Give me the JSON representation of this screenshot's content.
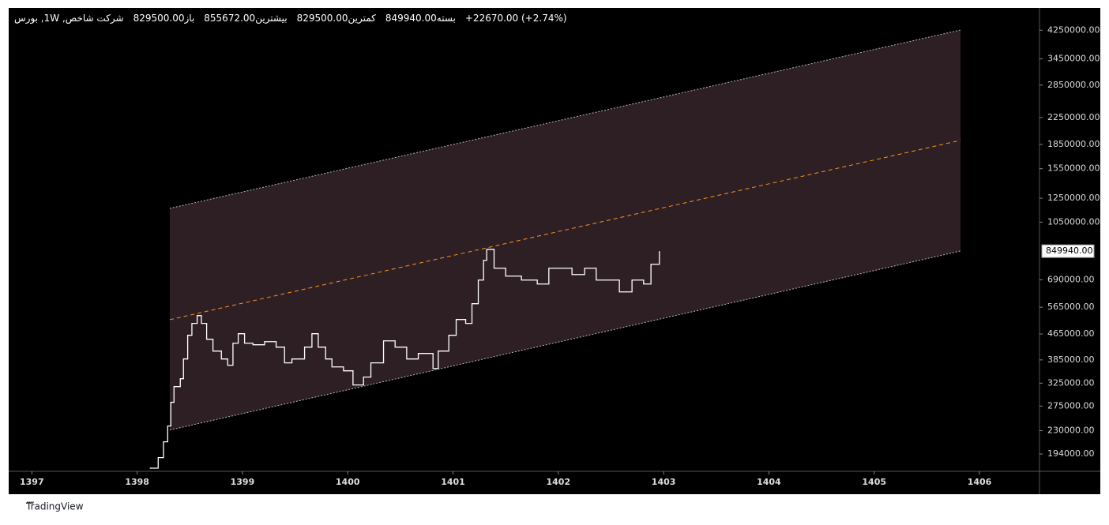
{
  "chart_data": {
    "type": "line",
    "log_scale": true,
    "header": {
      "symbol": "شرکت شاخص, 1W, بورس",
      "ohlc": [
        {
          "label": "باز",
          "value": "829500.00"
        },
        {
          "label": "بیشترین",
          "value": "855672.00"
        },
        {
          "label": "کمترین",
          "value": "829500.00"
        },
        {
          "label": "بسته",
          "value": "849940.00"
        }
      ],
      "change": "+22670.00 (+2.74%)"
    },
    "xlim": [
      1396.78,
      1406.57
    ],
    "xticks": [
      1397,
      1398,
      1399,
      1400,
      1401,
      1402,
      1403,
      1404,
      1405,
      1406
    ],
    "ylim": [
      171000,
      5000000
    ],
    "yticks": [
      {
        "value": 4250000,
        "label": "4250000.00"
      },
      {
        "value": 3450000,
        "label": "3450000.00"
      },
      {
        "value": 2850000,
        "label": "2850000.00"
      },
      {
        "value": 2250000,
        "label": "2250000.00"
      },
      {
        "value": 1850000,
        "label": "1850000.00"
      },
      {
        "value": 1550000,
        "label": "1550000.00"
      },
      {
        "value": 1250000,
        "label": "1250000.00"
      },
      {
        "value": 1050000,
        "label": "1050000.00"
      },
      {
        "value": 690000,
        "label": "690000.00"
      },
      {
        "value": 565000,
        "label": "565000.00"
      },
      {
        "value": 465000,
        "label": "465000.00"
      },
      {
        "value": 385000,
        "label": "385000.00"
      },
      {
        "value": 325000,
        "label": "325000.00"
      },
      {
        "value": 275000,
        "label": "275000.00"
      },
      {
        "value": 230000,
        "label": "230000.00"
      },
      {
        "value": 194000,
        "label": "194000.00"
      }
    ],
    "last_price": {
      "value": 849940,
      "label": "849940.00"
    },
    "channel": {
      "fill": "#2e1f25",
      "edge_color": "#b8b8b8",
      "mid_color": "#f7941d",
      "upper": {
        "x": [
          1398.31,
          1405.82
        ],
        "values": [
          1161000,
          4256000
        ]
      },
      "middle": {
        "x": [
          1398.31,
          1405.82
        ],
        "values": [
          516000,
          1905000
        ]
      },
      "lower": {
        "x": [
          1398.31,
          1405.82
        ],
        "values": [
          231000,
          851000
        ]
      }
    },
    "series": [
      {
        "color": "#ffffff",
        "x": [
          1398.12,
          1398.2,
          1398.25,
          1398.29,
          1398.32,
          1398.35,
          1398.41,
          1398.44,
          1398.48,
          1398.52,
          1398.57,
          1398.61,
          1398.66,
          1398.72,
          1398.8,
          1398.86,
          1398.91,
          1398.96,
          1399.02,
          1399.1,
          1399.21,
          1399.32,
          1399.4,
          1399.47,
          1399.59,
          1399.66,
          1399.72,
          1399.79,
          1399.85,
          1399.96,
          1400.05,
          1400.15,
          1400.22,
          1400.34,
          1400.45,
          1400.56,
          1400.67,
          1400.81,
          1400.86,
          1400.96,
          1401.03,
          1401.12,
          1401.18,
          1401.24,
          1401.29,
          1401.32,
          1401.39,
          1401.5,
          1401.65,
          1401.8,
          1401.91,
          1402.02,
          1402.13,
          1402.25,
          1402.36,
          1402.47,
          1402.58,
          1402.7,
          1402.81,
          1402.88,
          1402.96
        ],
        "values": [
          175000,
          189000,
          212000,
          237800,
          282700,
          317000,
          335700,
          387600,
          460600,
          502300,
          531800,
          502300,
          447500,
          410600,
          387600,
          370300,
          434800,
          465900,
          434800,
          429900,
          439800,
          422600,
          376700,
          387600,
          422600,
          465900,
          422600,
          387600,
          365900,
          355600,
          320700,
          339700,
          376700,
          442300,
          422600,
          387600,
          403600,
          361700,
          410600,
          460600,
          516700,
          502300,
          579700,
          688700,
          795100,
          861400,
          750600,
          708800,
          688700,
          669100,
          750600,
          750600,
          717000,
          750600,
          688700,
          688700,
          631800,
          688700,
          669100,
          772500,
          849940
        ]
      }
    ],
    "brand": "TradingView"
  }
}
